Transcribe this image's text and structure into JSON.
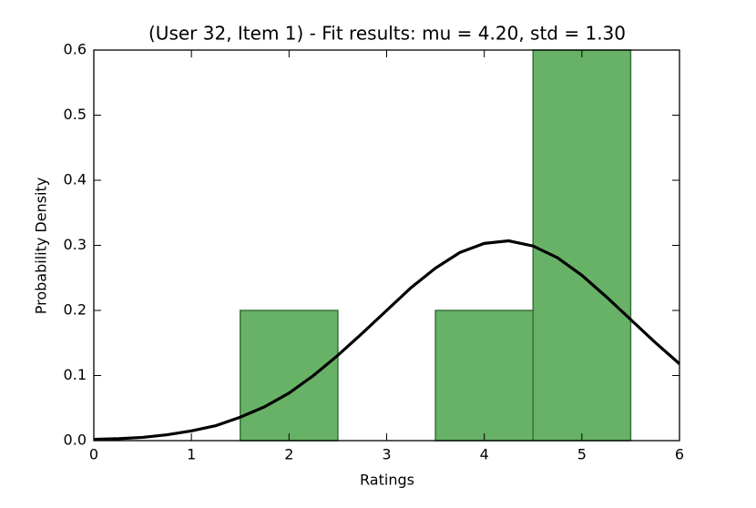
{
  "chart_data": {
    "type": "histogram",
    "title": "(User 32, Item 1) - Fit results: mu = 4.20,  std = 1.30",
    "xlabel": "Ratings",
    "ylabel": "Probability Density",
    "bins": [
      1.5,
      2.5,
      3.5,
      4.5,
      5.5
    ],
    "values": [
      0.2,
      0,
      0.2,
      0.6
    ],
    "color": "#67b267",
    "line": {
      "color": "#000000",
      "x": [
        0,
        0.25,
        0.5,
        0.75,
        1,
        1.25,
        1.5,
        1.75,
        2,
        2.25,
        2.5,
        2.75,
        3,
        3.25,
        3.5,
        3.75,
        4,
        4.25,
        4.5,
        4.75,
        5,
        5.25,
        5.5,
        5.75,
        6
      ],
      "values": [
        0.002,
        0.003,
        0.005,
        0.009,
        0.015,
        0.023,
        0.036,
        0.052,
        0.073,
        0.1,
        0.131,
        0.165,
        0.2,
        0.235,
        0.265,
        0.289,
        0.303,
        0.307,
        0.299,
        0.281,
        0.254,
        0.221,
        0.186,
        0.151,
        0.118
      ]
    },
    "xlim": [
      0,
      6
    ],
    "xticks": [
      0,
      1,
      2,
      3,
      4,
      5,
      6
    ],
    "ylim": [
      0,
      0.6
    ],
    "yticks": [
      {
        "value": 0,
        "label": "0.0"
      },
      0.1,
      0.2,
      0.3,
      0.4,
      0.5,
      0.6
    ]
  }
}
